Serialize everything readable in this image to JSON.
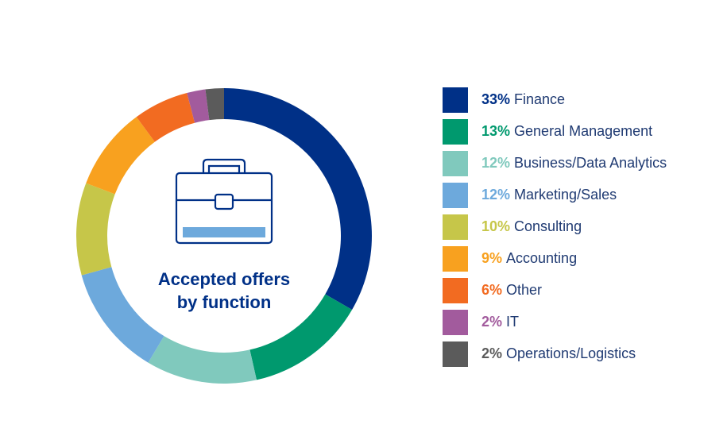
{
  "chart_data": {
    "type": "pie",
    "title": "Accepted offers by function",
    "title_lines": [
      "Accepted offers",
      "by function"
    ],
    "unit": "%",
    "categories": [
      "Finance",
      "General Management",
      "Business/Data Analytics",
      "Marketing/Sales",
      "Consulting",
      "Accounting",
      "Other",
      "IT",
      "Operations/Logistics"
    ],
    "values": [
      33,
      13,
      12,
      12,
      10,
      9,
      6,
      2,
      2
    ],
    "colors": [
      "#003087",
      "#00996e",
      "#80c9bd",
      "#6da9dc",
      "#c6c649",
      "#f8a11f",
      "#f26b21",
      "#a25b9d",
      "#5b5b5b"
    ],
    "legend_position": "right",
    "center_icon": "briefcase-icon"
  },
  "legend": [
    {
      "pct": "33%",
      "label": "Finance"
    },
    {
      "pct": "13%",
      "label": "General Management"
    },
    {
      "pct": "12%",
      "label": "Business/Data Analytics"
    },
    {
      "pct": "12%",
      "label": "Marketing/Sales"
    },
    {
      "pct": "10%",
      "label": "Consulting"
    },
    {
      "pct": "9%",
      "label": "Accounting"
    },
    {
      "pct": "6%",
      "label": "Other"
    },
    {
      "pct": "2%",
      "label": "IT"
    },
    {
      "pct": "2%",
      "label": "Operations/Logistics"
    }
  ]
}
